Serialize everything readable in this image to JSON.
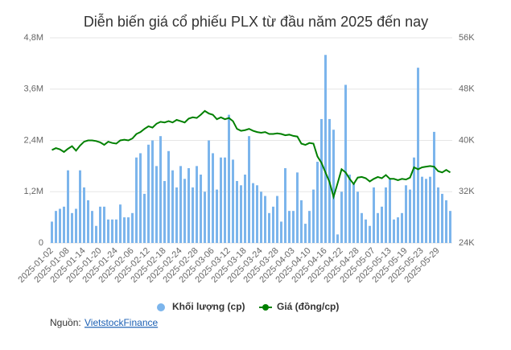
{
  "chart_data": {
    "type": "bar-line",
    "title": "Diễn biến giá cổ phiếu PLX từ đầu năm 2025 đến nay",
    "categories": [
      "2025-01-02",
      null,
      null,
      null,
      "2025-01-08",
      null,
      null,
      null,
      "2025-01-14",
      null,
      null,
      null,
      "2025-01-20",
      null,
      null,
      null,
      "2025-01-24",
      null,
      null,
      null,
      "2025-02-06",
      null,
      null,
      null,
      "2025-02-12",
      null,
      null,
      null,
      "2025-02-18",
      null,
      null,
      null,
      "2025-02-24",
      null,
      null,
      null,
      "2025-02-28",
      null,
      null,
      null,
      "2025-03-06",
      null,
      null,
      null,
      "2025-03-12",
      null,
      null,
      null,
      "2025-03-18",
      null,
      null,
      null,
      "2025-03-24",
      null,
      null,
      null,
      "2025-03-28",
      null,
      null,
      null,
      "2025-04-03",
      null,
      null,
      null,
      "2025-04-10",
      null,
      null,
      null,
      "2025-04-16",
      null,
      null,
      null,
      "2025-04-22",
      null,
      null,
      null,
      "2025-04-28",
      null,
      null,
      null,
      "2025-05-07",
      null,
      null,
      null,
      "2025-05-13",
      null,
      null,
      null,
      "2025-05-19",
      null,
      null,
      null,
      "2025-05-23",
      null,
      null,
      null,
      "2025-05-29",
      null,
      null,
      null
    ],
    "series": [
      {
        "name": "Khối lượng (cp)",
        "color": "#7cb5ec",
        "kind": "bar",
        "values": [
          500000,
          750000,
          800000,
          850000,
          1700000,
          700000,
          800000,
          1700000,
          1300000,
          1000000,
          750000,
          400000,
          850000,
          850000,
          550000,
          550000,
          550000,
          900000,
          600000,
          600000,
          700000,
          2000000,
          2100000,
          1150000,
          2300000,
          2400000,
          1800000,
          2500000,
          1450000,
          2150000,
          1700000,
          1300000,
          1800000,
          1500000,
          1750000,
          1300000,
          1800000,
          1600000,
          1200000,
          2400000,
          2100000,
          1250000,
          2000000,
          2000000,
          3000000,
          1950000,
          1450000,
          1350000,
          1600000,
          2500000,
          1400000,
          1350000,
          1200000,
          1100000,
          700000,
          850000,
          1100000,
          500000,
          1750000,
          750000,
          750000,
          1650000,
          1000000,
          450000,
          750000,
          1250000,
          1900000,
          2900000,
          4400000,
          2900000,
          2650000,
          200000,
          1200000,
          3700000,
          1600000,
          1400000,
          1200000,
          700000,
          550000,
          400000,
          1300000,
          700000,
          850000,
          1300000,
          1500000,
          550000,
          600000,
          700000,
          1350000,
          1250000,
          2000000,
          4100000,
          1550000,
          1500000,
          1550000,
          2600000,
          1300000,
          1150000,
          1000000,
          750000
        ]
      },
      {
        "name": "Giá (đồng/cp)",
        "color": "#008000",
        "kind": "line",
        "axis": "y2",
        "values": [
          38500,
          38800,
          38600,
          38200,
          38700,
          39100,
          38400,
          39200,
          39800,
          40000,
          40000,
          39900,
          39700,
          39300,
          39800,
          39600,
          39500,
          40000,
          40100,
          40000,
          40300,
          41000,
          41300,
          41800,
          42200,
          42000,
          42600,
          42900,
          42800,
          43000,
          42800,
          43200,
          43000,
          42800,
          43400,
          43600,
          43500,
          44000,
          44600,
          44200,
          44000,
          43300,
          43600,
          43300,
          43500,
          43000,
          41800,
          41500,
          41600,
          41800,
          41500,
          41300,
          41200,
          41300,
          41000,
          41000,
          41100,
          41000,
          40800,
          40900,
          40700,
          40600,
          39500,
          39300,
          39600,
          39500,
          37500,
          36500,
          35000,
          33500,
          31200,
          33300,
          35500,
          35000,
          34000,
          33200,
          34200,
          34300,
          34100,
          33600,
          34000,
          34300,
          34100,
          34600,
          34000,
          34000,
          33800,
          34000,
          33900,
          34200,
          35800,
          35500,
          35800,
          35900,
          36000,
          35900,
          35200,
          35000,
          35400,
          35000
        ]
      }
    ],
    "ylim": [
      0,
      4800000
    ],
    "yticks": [
      0,
      {
        "value": 1200000,
        "label": "1,2M"
      },
      {
        "value": 2400000,
        "label": "2,4M"
      },
      {
        "value": 3600000,
        "label": "3,6M"
      },
      {
        "value": 4800000,
        "label": "4,8M"
      }
    ],
    "y2lim": [
      24000,
      56000
    ],
    "y2ticks": [
      {
        "value": 24000,
        "label": "24K"
      },
      {
        "value": 32000,
        "label": "32K"
      },
      {
        "value": 40000,
        "label": "40K"
      },
      {
        "value": 48000,
        "label": "48K"
      },
      {
        "value": 56000,
        "label": "56K"
      }
    ],
    "grid": true,
    "legend": "bottom"
  },
  "source": {
    "label": "Nguồn:",
    "link": "VietstockFinance"
  }
}
